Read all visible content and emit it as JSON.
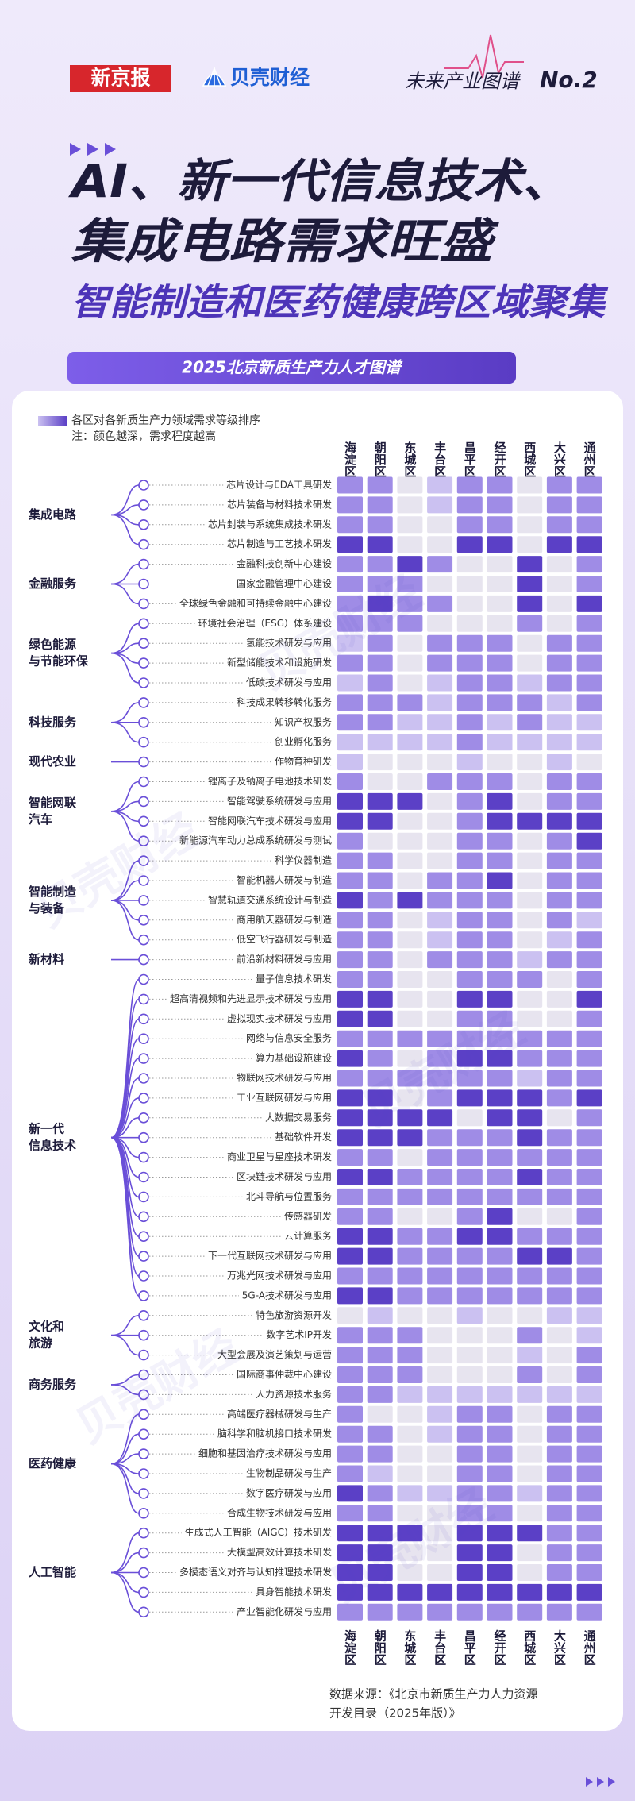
{
  "header": {
    "brands": [
      "新京报",
      "贝壳财经"
    ],
    "series_title": "未来产业图谱",
    "series_no": "No.2",
    "title_lines": [
      "AI、新一代信息技术、",
      "集成电路需求旺盛",
      "智能制造和医药健康跨区域聚集"
    ],
    "banner": "2025北京新质生产力人才图谱",
    "watermark": "贝壳财经"
  },
  "chart_data": {
    "type": "heatmap",
    "legend_note": [
      "各区对各新质生产力领域需求等级排序",
      "注：颜色越深，需求程度越高"
    ],
    "columns": [
      "海淀区",
      "朝阳区",
      "东城区",
      "丰台区",
      "昌平区",
      "经开区",
      "西城区",
      "大兴区",
      "通州区"
    ],
    "colors": [
      "#e7e4ef",
      "#cbc1f1",
      "#9f8ce6",
      "#5b40c6"
    ],
    "groups": [
      {
        "name": [
          "集成电路"
        ],
        "rows": [
          {
            "label": "芯片设计与EDA工具研发",
            "values": [
              2,
              2,
              0,
              1,
              2,
              2,
              0,
              2,
              2
            ]
          },
          {
            "label": "芯片装备与材料技术研发",
            "values": [
              2,
              2,
              0,
              1,
              2,
              2,
              0,
              2,
              2
            ]
          },
          {
            "label": "芯片封装与系统集成技术研发",
            "values": [
              2,
              2,
              0,
              0,
              2,
              2,
              0,
              2,
              2
            ]
          },
          {
            "label": "芯片制造与工艺技术研发",
            "values": [
              3,
              3,
              0,
              0,
              3,
              3,
              0,
              3,
              3
            ]
          }
        ]
      },
      {
        "name": [
          "金融服务"
        ],
        "rows": [
          {
            "label": "金融科技创新中心建设",
            "values": [
              2,
              2,
              3,
              2,
              0,
              0,
              3,
              0,
              2
            ]
          },
          {
            "label": "国家金融管理中心建设",
            "values": [
              2,
              2,
              2,
              0,
              0,
              0,
              3,
              0,
              2
            ]
          },
          {
            "label": "全球绿色金融和可持续金融中心建设",
            "values": [
              2,
              3,
              2,
              2,
              0,
              0,
              3,
              0,
              3
            ]
          }
        ]
      },
      {
        "name": [
          "绿色能源",
          "与节能环保"
        ],
        "rows": [
          {
            "label": "环境社会治理（ESG）体系建设",
            "values": [
              2,
              2,
              2,
              0,
              0,
              0,
              2,
              0,
              2
            ]
          },
          {
            "label": "氢能技术研发与应用",
            "values": [
              1,
              2,
              0,
              2,
              2,
              2,
              0,
              2,
              2
            ]
          },
          {
            "label": "新型储能技术和设施研发",
            "values": [
              2,
              2,
              0,
              2,
              2,
              2,
              0,
              2,
              2
            ]
          },
          {
            "label": "低碳技术研发与应用",
            "values": [
              1,
              2,
              0,
              1,
              2,
              2,
              1,
              2,
              2
            ]
          }
        ]
      },
      {
        "name": [
          "科技服务"
        ],
        "rows": [
          {
            "label": "科技成果转移转化服务",
            "values": [
              2,
              2,
              2,
              1,
              2,
              2,
              2,
              1,
              2
            ]
          },
          {
            "label": "知识产权服务",
            "values": [
              2,
              2,
              1,
              1,
              2,
              1,
              2,
              1,
              1
            ]
          },
          {
            "label": "创业孵化服务",
            "values": [
              1,
              1,
              1,
              1,
              2,
              1,
              1,
              1,
              1
            ]
          }
        ]
      },
      {
        "name": [
          "现代农业"
        ],
        "rows": [
          {
            "label": "作物育种研发",
            "values": [
              1,
              0,
              0,
              0,
              1,
              0,
              0,
              1,
              0
            ]
          }
        ]
      },
      {
        "name": [
          "智能网联",
          "汽车"
        ],
        "rows": [
          {
            "label": "锂离子及钠离子电池技术研发",
            "values": [
              2,
              0,
              0,
              2,
              2,
              2,
              0,
              2,
              2
            ]
          },
          {
            "label": "智能驾驶系统研发与应用",
            "values": [
              3,
              3,
              3,
              0,
              2,
              3,
              0,
              2,
              2
            ]
          },
          {
            "label": "智能网联汽车技术研发与应用",
            "values": [
              3,
              3,
              0,
              0,
              2,
              3,
              3,
              3,
              3
            ]
          },
          {
            "label": "新能源汽车动力总成系统研发与测试",
            "values": [
              2,
              0,
              0,
              0,
              2,
              2,
              0,
              2,
              3
            ]
          }
        ]
      },
      {
        "name": [
          "智能制造",
          "与装备"
        ],
        "rows": [
          {
            "label": "科学仪器制造",
            "values": [
              2,
              2,
              0,
              0,
              2,
              2,
              0,
              2,
              2
            ]
          },
          {
            "label": "智能机器人研发与制造",
            "values": [
              2,
              2,
              0,
              2,
              2,
              3,
              0,
              2,
              2
            ]
          },
          {
            "label": "智慧轨道交通系统设计与制造",
            "values": [
              3,
              2,
              3,
              2,
              2,
              2,
              0,
              2,
              2
            ]
          },
          {
            "label": "商用航天器研发与制造",
            "values": [
              2,
              2,
              0,
              1,
              2,
              2,
              0,
              2,
              1
            ]
          },
          {
            "label": "低空飞行器研发与制造",
            "values": [
              2,
              2,
              0,
              1,
              2,
              2,
              0,
              1,
              2
            ]
          }
        ]
      },
      {
        "name": [
          "新材料"
        ],
        "rows": [
          {
            "label": "前沿新材料研发与应用",
            "values": [
              2,
              2,
              0,
              2,
              2,
              2,
              1,
              2,
              2
            ]
          }
        ]
      },
      {
        "name": [
          "新一代",
          "信息技术"
        ],
        "rows": [
          {
            "label": "量子信息技术研发",
            "values": [
              2,
              2,
              0,
              0,
              2,
              2,
              2,
              0,
              2
            ]
          },
          {
            "label": "超高清视频和先进显示技术研发与应用",
            "values": [
              3,
              3,
              0,
              0,
              3,
              3,
              0,
              0,
              3
            ]
          },
          {
            "label": "虚拟现实技术研发与应用",
            "values": [
              3,
              3,
              0,
              0,
              2,
              2,
              0,
              0,
              2
            ]
          },
          {
            "label": "网络与信息安全服务",
            "values": [
              2,
              2,
              2,
              2,
              2,
              2,
              2,
              2,
              2
            ]
          },
          {
            "label": "算力基础设施建设",
            "values": [
              3,
              2,
              0,
              2,
              3,
              3,
              2,
              2,
              2
            ]
          },
          {
            "label": "物联网技术研发与应用",
            "values": [
              2,
              2,
              2,
              2,
              2,
              2,
              1,
              2,
              2
            ]
          },
          {
            "label": "工业互联网研发与应用",
            "values": [
              3,
              3,
              0,
              2,
              3,
              3,
              3,
              2,
              3
            ]
          },
          {
            "label": "大数据交易服务",
            "values": [
              3,
              3,
              3,
              3,
              0,
              3,
              3,
              0,
              2
            ]
          },
          {
            "label": "基础软件开发",
            "values": [
              3,
              3,
              3,
              2,
              2,
              2,
              3,
              2,
              2
            ]
          },
          {
            "label": "商业卫星与星座技术研发",
            "values": [
              2,
              2,
              0,
              2,
              2,
              2,
              2,
              2,
              2
            ]
          },
          {
            "label": "区块链技术研发与应用",
            "values": [
              3,
              3,
              2,
              2,
              2,
              2,
              3,
              2,
              2
            ]
          },
          {
            "label": "北斗导航与位置服务",
            "values": [
              2,
              2,
              2,
              2,
              2,
              2,
              2,
              2,
              2
            ]
          },
          {
            "label": "传感器研发",
            "values": [
              2,
              2,
              0,
              0,
              2,
              3,
              0,
              0,
              2
            ]
          },
          {
            "label": "云计算服务",
            "values": [
              3,
              3,
              2,
              2,
              3,
              3,
              2,
              2,
              2
            ]
          },
          {
            "label": "下一代互联网技术研发与应用",
            "values": [
              3,
              3,
              2,
              2,
              2,
              2,
              3,
              3,
              2
            ]
          },
          {
            "label": "万兆光网技术研发与应用",
            "values": [
              2,
              2,
              2,
              2,
              2,
              2,
              2,
              2,
              2
            ]
          },
          {
            "label": "5G-A技术研发与应用",
            "values": [
              3,
              3,
              2,
              2,
              2,
              2,
              2,
              2,
              2
            ]
          }
        ]
      },
      {
        "name": [
          "文化和",
          "旅游"
        ],
        "rows": [
          {
            "label": "特色旅游资源开发",
            "values": [
              0,
              1,
              0,
              0,
              1,
              0,
              0,
              1,
              1
            ]
          },
          {
            "label": "数字艺术IP开发",
            "values": [
              2,
              2,
              2,
              0,
              0,
              0,
              2,
              0,
              1
            ]
          },
          {
            "label": "大型会展及演艺策划与运营",
            "values": [
              2,
              2,
              2,
              0,
              0,
              0,
              1,
              0,
              2
            ]
          }
        ]
      },
      {
        "name": [
          "商务服务"
        ],
        "rows": [
          {
            "label": "国际商事仲裁中心建设",
            "values": [
              2,
              2,
              2,
              0,
              0,
              0,
              2,
              0,
              2
            ]
          },
          {
            "label": "人力资源技术服务",
            "values": [
              2,
              2,
              1,
              1,
              1,
              1,
              1,
              1,
              1
            ]
          }
        ]
      },
      {
        "name": [
          "医药健康"
        ],
        "rows": [
          {
            "label": "高端医疗器械研发与生产",
            "values": [
              2,
              0,
              0,
              1,
              2,
              2,
              0,
              2,
              2
            ]
          },
          {
            "label": "脑科学和脑机接口技术研发",
            "values": [
              2,
              2,
              0,
              1,
              2,
              2,
              0,
              2,
              2
            ]
          },
          {
            "label": "细胞和基因治疗技术研发与应用",
            "values": [
              2,
              2,
              0,
              0,
              2,
              2,
              0,
              2,
              2
            ]
          },
          {
            "label": "生物制品研发与生产",
            "values": [
              2,
              1,
              0,
              0,
              2,
              2,
              0,
              2,
              2
            ]
          },
          {
            "label": "数字医疗研发与应用",
            "values": [
              3,
              2,
              1,
              1,
              2,
              2,
              1,
              2,
              2
            ]
          },
          {
            "label": "合成生物技术研发与应用",
            "values": [
              2,
              2,
              0,
              0,
              2,
              2,
              0,
              2,
              2
            ]
          }
        ]
      },
      {
        "name": [
          "人工智能"
        ],
        "rows": [
          {
            "label": "生成式人工智能（AIGC）技术研发",
            "values": [
              3,
              3,
              3,
              0,
              3,
              3,
              3,
              2,
              2
            ]
          },
          {
            "label": "大模型高效计算技术研发",
            "values": [
              3,
              3,
              0,
              0,
              3,
              3,
              0,
              2,
              2
            ]
          },
          {
            "label": "多模态语义对齐与认知推理技术研发",
            "values": [
              3,
              3,
              0,
              0,
              3,
              3,
              0,
              2,
              2
            ]
          },
          {
            "label": "具身智能技术研发",
            "values": [
              3,
              3,
              3,
              3,
              3,
              3,
              3,
              3,
              3
            ]
          },
          {
            "label": "产业智能化研发与应用",
            "values": [
              2,
              2,
              2,
              2,
              2,
              2,
              2,
              2,
              2
            ]
          }
        ]
      }
    ]
  },
  "source": [
    "数据来源：《北京市新质生产力人力资源",
    "开发目录（2025年版）》"
  ]
}
